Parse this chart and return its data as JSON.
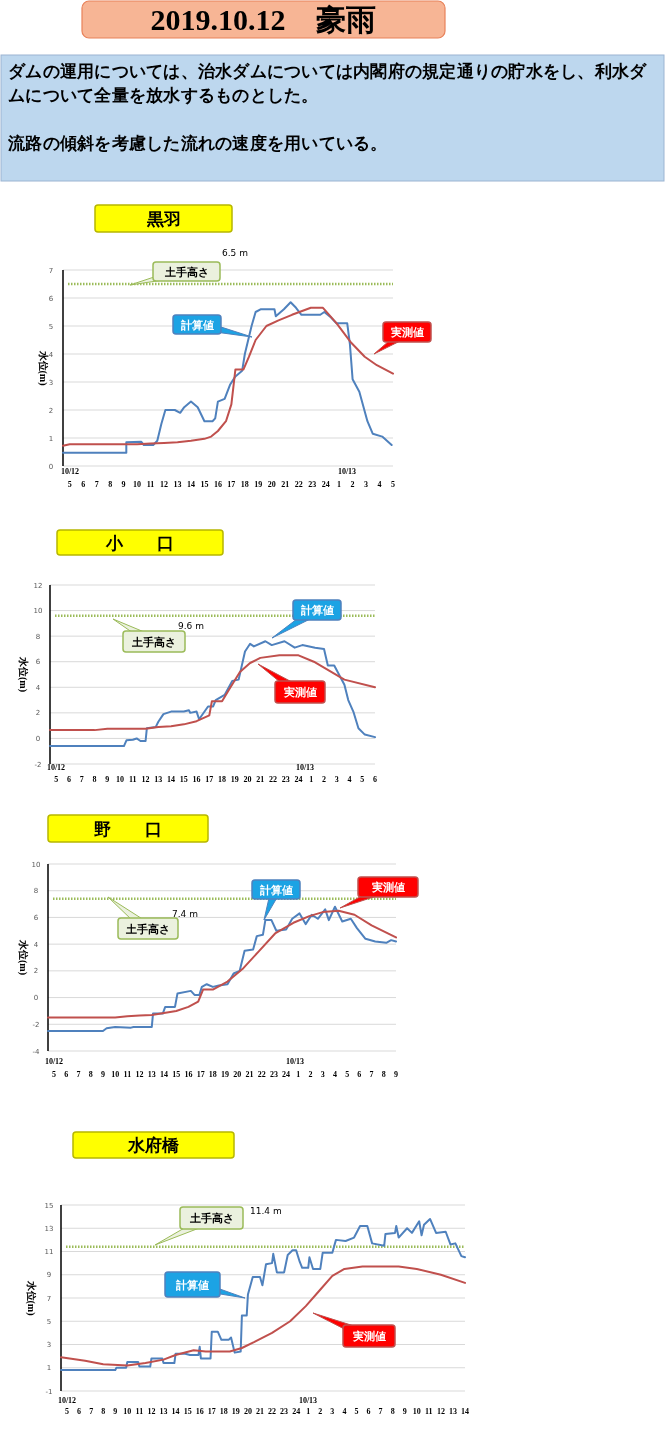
{
  "chart_data": [
    {
      "type": "other",
      "title": "2019.10.12　豪雨",
      "annotations": [
        "ダムの運用については、治水ダムについては内閣府の規定通りの貯水をし、利水ダムについて全量を放水するものとした。",
        "流路の傾斜を考慮した流れの速度を用いている。"
      ]
    },
    {
      "type": "line",
      "title": "黒羽",
      "ylabel": "水位(m)",
      "grid": "y",
      "xlim": [
        "2019-10-12T04:30",
        "2019-10-13T05:00"
      ],
      "ylim": [
        0,
        7
      ],
      "yticks": [
        0,
        1,
        2,
        3,
        4,
        5,
        6,
        7
      ],
      "xticks": [
        {
          "value": "2019-10-12T05:00",
          "label": "5"
        },
        {
          "value": "2019-10-12T06:00",
          "label": "6"
        },
        {
          "value": "2019-10-12T07:00",
          "label": "7"
        },
        {
          "value": "2019-10-12T08:00",
          "label": "8"
        },
        {
          "value": "2019-10-12T09:00",
          "label": "9"
        },
        {
          "value": "2019-10-12T10:00",
          "label": "10"
        },
        {
          "value": "2019-10-12T11:00",
          "label": "11"
        },
        {
          "value": "2019-10-12T12:00",
          "label": "12"
        },
        {
          "value": "2019-10-12T13:00",
          "label": "13"
        },
        {
          "value": "2019-10-12T14:00",
          "label": "14"
        },
        {
          "value": "2019-10-12T15:00",
          "label": "15"
        },
        {
          "value": "2019-10-12T16:00",
          "label": "16"
        },
        {
          "value": "2019-10-12T17:00",
          "label": "17"
        },
        {
          "value": "2019-10-12T18:00",
          "label": "18"
        },
        {
          "value": "2019-10-12T19:00",
          "label": "19"
        },
        {
          "value": "2019-10-12T20:00",
          "label": "20"
        },
        {
          "value": "2019-10-12T21:00",
          "label": "21"
        },
        {
          "value": "2019-10-12T22:00",
          "label": "22"
        },
        {
          "value": "2019-10-12T23:00",
          "label": "23"
        },
        {
          "value": "2019-10-13T00:00",
          "label": "24"
        },
        {
          "value": "2019-10-13T01:00",
          "label": "1"
        },
        {
          "value": "2019-10-13T02:00",
          "label": "2"
        },
        {
          "value": "2019-10-13T03:00",
          "label": "3"
        },
        {
          "value": "2019-10-13T04:00",
          "label": "4"
        },
        {
          "value": "2019-10-13T05:00",
          "label": "5"
        }
      ],
      "ref_lines": [
        {
          "axis": "y",
          "value": 6.5,
          "label": "土手高さ",
          "color": "#9bbb59",
          "line_style": "dotted"
        }
      ],
      "annotations": [
        "6.5 m",
        "10/12",
        "10/13"
      ],
      "series": [
        {
          "name": "計算値",
          "color": "#4f81bd",
          "x": [
            "2019-10-12T04:30",
            "2019-10-12T09:12",
            "2019-10-12T09:12",
            "2019-10-12T10:18",
            "2019-10-12T10:30",
            "2019-10-12T11:12",
            "2019-10-12T11:30",
            "2019-10-12T11:48",
            "2019-10-12T12:06",
            "2019-10-12T12:48",
            "2019-10-12T13:12",
            "2019-10-12T13:30",
            "2019-10-12T14:00",
            "2019-10-12T14:30",
            "2019-10-12T15:00",
            "2019-10-12T15:36",
            "2019-10-12T15:48",
            "2019-10-12T16:00",
            "2019-10-12T16:30",
            "2019-10-12T16:54",
            "2019-10-12T17:18",
            "2019-10-12T17:48",
            "2019-10-12T18:00",
            "2019-10-12T18:30",
            "2019-10-12T18:48",
            "2019-10-12T19:12",
            "2019-10-12T20:12",
            "2019-10-12T20:18",
            "2019-10-12T20:54",
            "2019-10-12T21:24",
            "2019-10-12T21:48",
            "2019-10-12T22:12",
            "2019-10-12T23:36",
            "2019-10-12T23:54",
            "2019-10-13T00:24",
            "2019-10-13T00:48",
            "2019-10-13T01:36",
            "2019-10-13T01:48",
            "2019-10-13T02:00",
            "2019-10-13T02:30",
            "2019-10-13T03:06",
            "2019-10-13T03:30",
            "2019-10-13T04:12",
            "2019-10-13T04:54"
          ],
          "values": [
            0.47,
            0.47,
            0.85,
            0.87,
            0.75,
            0.75,
            0.9,
            1.5,
            2.0,
            2.0,
            1.9,
            2.1,
            2.3,
            2.1,
            1.6,
            1.6,
            1.7,
            2.3,
            2.4,
            2.9,
            3.2,
            3.4,
            4.0,
            5.0,
            5.5,
            5.6,
            5.6,
            5.35,
            5.6,
            5.85,
            5.65,
            5.4,
            5.4,
            5.5,
            5.3,
            5.1,
            5.1,
            4.35,
            3.1,
            2.65,
            1.6,
            1.15,
            1.05,
            0.75
          ]
        },
        {
          "name": "実測値",
          "color": "#c0504d",
          "x": [
            "2019-10-12T04:30",
            "2019-10-12T05:00",
            "2019-10-12T10:00",
            "2019-10-12T11:00",
            "2019-10-12T12:00",
            "2019-10-12T13:00",
            "2019-10-12T14:00",
            "2019-10-12T15:00",
            "2019-10-12T15:30",
            "2019-10-12T16:00",
            "2019-10-12T16:36",
            "2019-10-12T17:00",
            "2019-10-12T17:18",
            "2019-10-12T17:54",
            "2019-10-12T18:18",
            "2019-10-12T18:48",
            "2019-10-12T19:36",
            "2019-10-12T20:30",
            "2019-10-12T21:30",
            "2019-10-12T22:54",
            "2019-10-12T23:48",
            "2019-10-13T00:48",
            "2019-10-13T01:54",
            "2019-10-13T02:54",
            "2019-10-13T03:48",
            "2019-10-13T05:00"
          ],
          "values": [
            0.72,
            0.78,
            0.78,
            0.8,
            0.82,
            0.85,
            0.9,
            0.97,
            1.05,
            1.25,
            1.6,
            2.2,
            3.45,
            3.45,
            3.9,
            4.5,
            5.0,
            5.2,
            5.4,
            5.65,
            5.65,
            5.1,
            4.4,
            3.9,
            3.6,
            3.3
          ]
        }
      ]
    },
    {
      "type": "line",
      "title": "小　　口",
      "ylabel": "水位(m)",
      "grid": "y",
      "xlim": [
        "2019-10-12T04:30",
        "2019-10-13T06:00"
      ],
      "ylim": [
        -2,
        12
      ],
      "yticks": [
        -2,
        0,
        2,
        4,
        6,
        8,
        10,
        12
      ],
      "xticks": [
        {
          "value": "2019-10-12T05:00",
          "label": "5"
        },
        {
          "value": "2019-10-12T06:00",
          "label": "6"
        },
        {
          "value": "2019-10-12T07:00",
          "label": "7"
        },
        {
          "value": "2019-10-12T08:00",
          "label": "8"
        },
        {
          "value": "2019-10-12T09:00",
          "label": "9"
        },
        {
          "value": "2019-10-12T10:00",
          "label": "10"
        },
        {
          "value": "2019-10-12T11:00",
          "label": "11"
        },
        {
          "value": "2019-10-12T12:00",
          "label": "12"
        },
        {
          "value": "2019-10-12T13:00",
          "label": "13"
        },
        {
          "value": "2019-10-12T14:00",
          "label": "14"
        },
        {
          "value": "2019-10-12T15:00",
          "label": "15"
        },
        {
          "value": "2019-10-12T16:00",
          "label": "16"
        },
        {
          "value": "2019-10-12T17:00",
          "label": "17"
        },
        {
          "value": "2019-10-12T18:00",
          "label": "18"
        },
        {
          "value": "2019-10-12T19:00",
          "label": "19"
        },
        {
          "value": "2019-10-12T20:00",
          "label": "20"
        },
        {
          "value": "2019-10-12T21:00",
          "label": "21"
        },
        {
          "value": "2019-10-12T22:00",
          "label": "22"
        },
        {
          "value": "2019-10-12T23:00",
          "label": "23"
        },
        {
          "value": "2019-10-13T00:00",
          "label": "24"
        },
        {
          "value": "2019-10-13T01:00",
          "label": "1"
        },
        {
          "value": "2019-10-13T02:00",
          "label": "2"
        },
        {
          "value": "2019-10-13T03:00",
          "label": "3"
        },
        {
          "value": "2019-10-13T04:00",
          "label": "4"
        },
        {
          "value": "2019-10-13T05:00",
          "label": "5"
        },
        {
          "value": "2019-10-13T06:00",
          "label": "6"
        }
      ],
      "ref_lines": [
        {
          "axis": "y",
          "value": 9.6,
          "label": "土手高さ",
          "color": "#9bbb59",
          "line_style": "dotted"
        }
      ],
      "annotations": [
        "9.6 m",
        "10/12",
        "10/13"
      ],
      "series": [
        {
          "name": "計算値",
          "color": "#4f81bd",
          "x": [
            "2019-10-12T04:30",
            "2019-10-12T10:18",
            "2019-10-12T10:30",
            "2019-10-12T11:00",
            "2019-10-12T11:18",
            "2019-10-12T11:36",
            "2019-10-12T12:00",
            "2019-10-12T12:06",
            "2019-10-12T12:48",
            "2019-10-12T13:00",
            "2019-10-12T13:24",
            "2019-10-12T14:00",
            "2019-10-12T15:00",
            "2019-10-12T15:24",
            "2019-10-12T15:30",
            "2019-10-12T16:00",
            "2019-10-12T16:12",
            "2019-10-12T16:54",
            "2019-10-12T17:18",
            "2019-10-12T17:30",
            "2019-10-12T18:12",
            "2019-10-12T18:48",
            "2019-10-12T19:18",
            "2019-10-12T19:48",
            "2019-10-12T20:12",
            "2019-10-12T20:30",
            "2019-10-12T21:24",
            "2019-10-12T21:54",
            "2019-10-12T22:54",
            "2019-10-12T23:42",
            "2019-10-13T00:18",
            "2019-10-13T01:18",
            "2019-10-13T02:00",
            "2019-10-13T02:18",
            "2019-10-13T02:48",
            "2019-10-13T03:36",
            "2019-10-13T03:54",
            "2019-10-13T04:18",
            "2019-10-13T04:42",
            "2019-10-13T05:12",
            "2019-10-13T06:00"
          ],
          "values": [
            -0.6,
            -0.6,
            -0.15,
            -0.1,
            0.0,
            -0.2,
            -0.2,
            0.8,
            0.9,
            1.3,
            1.9,
            2.1,
            2.1,
            2.2,
            2.0,
            2.1,
            1.5,
            2.5,
            2.5,
            3.0,
            3.4,
            4.5,
            4.6,
            6.8,
            7.4,
            7.2,
            7.6,
            7.3,
            7.6,
            7.1,
            7.3,
            7.1,
            7.0,
            5.7,
            5.7,
            4.2,
            3.0,
            2.1,
            0.8,
            0.3,
            0.1
          ]
        },
        {
          "name": "実測値",
          "color": "#c0504d",
          "x": [
            "2019-10-12T04:30",
            "2019-10-12T08:00",
            "2019-10-12T09:00",
            "2019-10-12T12:00",
            "2019-10-12T13:00",
            "2019-10-12T14:00",
            "2019-10-12T15:00",
            "2019-10-12T16:00",
            "2019-10-12T17:00",
            "2019-10-12T17:12",
            "2019-10-12T18:00",
            "2019-10-12T18:36",
            "2019-10-12T19:24",
            "2019-10-12T20:12",
            "2019-10-12T21:00",
            "2019-10-12T22:30",
            "2019-10-13T00:00",
            "2019-10-13T01:12",
            "2019-10-13T02:24",
            "2019-10-13T03:36",
            "2019-10-13T06:00"
          ],
          "values": [
            0.65,
            0.65,
            0.75,
            0.75,
            0.9,
            0.95,
            1.1,
            1.35,
            1.8,
            2.9,
            2.9,
            3.9,
            5.2,
            5.9,
            6.3,
            6.5,
            6.5,
            6.0,
            5.3,
            4.6,
            4.0
          ]
        }
      ]
    },
    {
      "type": "line",
      "title": "野　　口",
      "ylabel": "水位(m)",
      "grid": "y",
      "xlim": [
        "2019-10-12T04:30",
        "2019-10-13T09:00"
      ],
      "ylim": [
        -4,
        10
      ],
      "yticks": [
        -4,
        -2,
        0,
        2,
        4,
        6,
        8,
        10
      ],
      "xticks": [
        {
          "value": "2019-10-12T05:00",
          "label": "5"
        },
        {
          "value": "2019-10-12T06:00",
          "label": "6"
        },
        {
          "value": "2019-10-12T07:00",
          "label": "7"
        },
        {
          "value": "2019-10-12T08:00",
          "label": "8"
        },
        {
          "value": "2019-10-12T09:00",
          "label": "9"
        },
        {
          "value": "2019-10-12T10:00",
          "label": "10"
        },
        {
          "value": "2019-10-12T11:00",
          "label": "11"
        },
        {
          "value": "2019-10-12T12:00",
          "label": "12"
        },
        {
          "value": "2019-10-12T13:00",
          "label": "13"
        },
        {
          "value": "2019-10-12T14:00",
          "label": "14"
        },
        {
          "value": "2019-10-12T15:00",
          "label": "15"
        },
        {
          "value": "2019-10-12T16:00",
          "label": "16"
        },
        {
          "value": "2019-10-12T17:00",
          "label": "17"
        },
        {
          "value": "2019-10-12T18:00",
          "label": "18"
        },
        {
          "value": "2019-10-12T19:00",
          "label": "19"
        },
        {
          "value": "2019-10-12T20:00",
          "label": "20"
        },
        {
          "value": "2019-10-12T21:00",
          "label": "21"
        },
        {
          "value": "2019-10-12T22:00",
          "label": "22"
        },
        {
          "value": "2019-10-12T23:00",
          "label": "23"
        },
        {
          "value": "2019-10-13T00:00",
          "label": "24"
        },
        {
          "value": "2019-10-13T01:00",
          "label": "1"
        },
        {
          "value": "2019-10-13T02:00",
          "label": "2"
        },
        {
          "value": "2019-10-13T03:00",
          "label": "3"
        },
        {
          "value": "2019-10-13T04:00",
          "label": "4"
        },
        {
          "value": "2019-10-13T05:00",
          "label": "5"
        },
        {
          "value": "2019-10-13T06:00",
          "label": "6"
        },
        {
          "value": "2019-10-13T07:00",
          "label": "7"
        },
        {
          "value": "2019-10-13T08:00",
          "label": "8"
        },
        {
          "value": "2019-10-13T09:00",
          "label": "9"
        }
      ],
      "ref_lines": [
        {
          "axis": "y",
          "value": 7.4,
          "label": "土手高さ",
          "color": "#9bbb59",
          "line_style": "dotted"
        }
      ],
      "annotations": [
        "7.4 m",
        "10/12",
        "10/13"
      ],
      "series": [
        {
          "name": "計算値",
          "color": "#4f81bd",
          "x": [
            "2019-10-12T04:30",
            "2019-10-12T09:00",
            "2019-10-12T09:18",
            "2019-10-12T10:00",
            "2019-10-12T11:18",
            "2019-10-12T11:30",
            "2019-10-12T13:00",
            "2019-10-12T13:06",
            "2019-10-12T13:54",
            "2019-10-12T14:06",
            "2019-10-12T14:54",
            "2019-10-12T15:06",
            "2019-10-12T16:12",
            "2019-10-12T16:30",
            "2019-10-12T16:54",
            "2019-10-12T17:06",
            "2019-10-12T17:30",
            "2019-10-12T18:00",
            "2019-10-12T18:30",
            "2019-10-12T19:12",
            "2019-10-12T19:42",
            "2019-10-12T20:12",
            "2019-10-12T20:36",
            "2019-10-12T21:18",
            "2019-10-12T21:36",
            "2019-10-12T22:06",
            "2019-10-12T22:18",
            "2019-10-12T22:48",
            "2019-10-12T23:12",
            "2019-10-13T00:00",
            "2019-10-13T00:30",
            "2019-10-13T01:06",
            "2019-10-13T01:36",
            "2019-10-13T02:06",
            "2019-10-13T02:36",
            "2019-10-13T03:12",
            "2019-10-13T03:30",
            "2019-10-13T04:00",
            "2019-10-13T04:36",
            "2019-10-13T05:18",
            "2019-10-13T05:48",
            "2019-10-13T06:30",
            "2019-10-13T07:18",
            "2019-10-13T08:12",
            "2019-10-13T08:36",
            "2019-10-13T09:00"
          ],
          "values": [
            -2.5,
            -2.5,
            -2.3,
            -2.2,
            -2.25,
            -2.2,
            -2.2,
            -1.2,
            -1.2,
            -0.7,
            -0.7,
            0.3,
            0.5,
            0.2,
            0.2,
            0.8,
            1.0,
            0.8,
            0.9,
            1.0,
            1.8,
            2.0,
            3.5,
            3.6,
            4.6,
            4.7,
            5.8,
            5.8,
            5.0,
            5.1,
            5.9,
            6.3,
            5.5,
            6.2,
            5.9,
            6.6,
            5.8,
            6.8,
            5.7,
            5.9,
            5.2,
            4.4,
            4.2,
            4.1,
            4.3,
            4.2
          ]
        },
        {
          "name": "実測値",
          "color": "#c0504d",
          "x": [
            "2019-10-12T04:30",
            "2019-10-12T10:00",
            "2019-10-12T11:00",
            "2019-10-12T12:00",
            "2019-10-12T13:00",
            "2019-10-12T14:00",
            "2019-10-12T15:00",
            "2019-10-12T16:00",
            "2019-10-12T16:48",
            "2019-10-12T17:12",
            "2019-10-12T18:00",
            "2019-10-12T19:12",
            "2019-10-12T20:30",
            "2019-10-12T21:48",
            "2019-10-12T23:06",
            "2019-10-13T00:36",
            "2019-10-13T01:54",
            "2019-10-13T03:00",
            "2019-10-13T04:18",
            "2019-10-13T05:36",
            "2019-10-13T07:00",
            "2019-10-13T09:00"
          ],
          "values": [
            -1.5,
            -1.5,
            -1.4,
            -1.35,
            -1.3,
            -1.15,
            -1.0,
            -0.7,
            -0.3,
            0.6,
            0.6,
            1.2,
            2.2,
            3.5,
            4.8,
            5.6,
            6.1,
            6.4,
            6.5,
            6.2,
            5.4,
            4.5
          ]
        }
      ]
    },
    {
      "type": "line",
      "title": "水府橋",
      "ylabel": "水位(m)",
      "grid": "y",
      "xlim": [
        "2019-10-12T04:30",
        "2019-10-13T14:00"
      ],
      "ylim": [
        -1,
        15
      ],
      "yticks": [
        -1,
        1,
        3,
        5,
        7,
        9,
        11,
        13,
        15
      ],
      "xticks": [
        {
          "value": "2019-10-12T05:00",
          "label": "5"
        },
        {
          "value": "2019-10-12T06:00",
          "label": "6"
        },
        {
          "value": "2019-10-12T07:00",
          "label": "7"
        },
        {
          "value": "2019-10-12T08:00",
          "label": "8"
        },
        {
          "value": "2019-10-12T09:00",
          "label": "9"
        },
        {
          "value": "2019-10-12T10:00",
          "label": "10"
        },
        {
          "value": "2019-10-12T11:00",
          "label": "11"
        },
        {
          "value": "2019-10-12T12:00",
          "label": "12"
        },
        {
          "value": "2019-10-12T13:00",
          "label": "13"
        },
        {
          "value": "2019-10-12T14:00",
          "label": "14"
        },
        {
          "value": "2019-10-12T15:00",
          "label": "15"
        },
        {
          "value": "2019-10-12T16:00",
          "label": "16"
        },
        {
          "value": "2019-10-12T17:00",
          "label": "17"
        },
        {
          "value": "2019-10-12T18:00",
          "label": "18"
        },
        {
          "value": "2019-10-12T19:00",
          "label": "19"
        },
        {
          "value": "2019-10-12T20:00",
          "label": "20"
        },
        {
          "value": "2019-10-12T21:00",
          "label": "21"
        },
        {
          "value": "2019-10-12T22:00",
          "label": "22"
        },
        {
          "value": "2019-10-12T23:00",
          "label": "23"
        },
        {
          "value": "2019-10-13T00:00",
          "label": "24"
        },
        {
          "value": "2019-10-13T01:00",
          "label": "1"
        },
        {
          "value": "2019-10-13T02:00",
          "label": "2"
        },
        {
          "value": "2019-10-13T03:00",
          "label": "3"
        },
        {
          "value": "2019-10-13T04:00",
          "label": "4"
        },
        {
          "value": "2019-10-13T05:00",
          "label": "5"
        },
        {
          "value": "2019-10-13T06:00",
          "label": "6"
        },
        {
          "value": "2019-10-13T07:00",
          "label": "7"
        },
        {
          "value": "2019-10-13T08:00",
          "label": "8"
        },
        {
          "value": "2019-10-13T09:00",
          "label": "9"
        },
        {
          "value": "2019-10-13T10:00",
          "label": "10"
        },
        {
          "value": "2019-10-13T11:00",
          "label": "11"
        },
        {
          "value": "2019-10-13T12:00",
          "label": "12"
        },
        {
          "value": "2019-10-13T13:00",
          "label": "13"
        },
        {
          "value": "2019-10-13T14:00",
          "label": "14"
        }
      ],
      "ref_lines": [
        {
          "axis": "y",
          "value": 11.4,
          "label": "土手高さ",
          "color": "#9bbb59",
          "line_style": "dotted"
        }
      ],
      "annotations": [
        "11.4 m",
        "10/12",
        "10/13"
      ],
      "series": [
        {
          "name": "計算値",
          "color": "#4f81bd",
          "x": [
            "2019-10-12T04:30",
            "2019-10-12T09:00",
            "2019-10-12T09:06",
            "2019-10-12T09:54",
            "2019-10-12T10:00",
            "2019-10-12T10:54",
            "2019-10-12T11:00",
            "2019-10-12T11:54",
            "2019-10-12T12:00",
            "2019-10-12T12:54",
            "2019-10-12T13:00",
            "2019-10-12T13:54",
            "2019-10-12T14:00",
            "2019-10-12T14:48",
            "2019-10-12T15:12",
            "2019-10-12T15:54",
            "2019-10-12T16:00",
            "2019-10-12T16:06",
            "2019-10-12T16:54",
            "2019-10-12T17:00",
            "2019-10-12T17:30",
            "2019-10-12T17:48",
            "2019-10-12T18:24",
            "2019-10-12T18:36",
            "2019-10-12T18:54",
            "2019-10-12T19:24",
            "2019-10-12T19:30",
            "2019-10-12T19:54",
            "2019-10-12T20:00",
            "2019-10-12T20:24",
            "2019-10-12T21:00",
            "2019-10-12T21:12",
            "2019-10-12T21:30",
            "2019-10-12T22:00",
            "2019-10-12T22:06",
            "2019-10-12T22:24",
            "2019-10-12T23:00",
            "2019-10-12T23:18",
            "2019-10-12T23:42",
            "2019-10-13T00:00",
            "2019-10-13T00:18",
            "2019-10-13T00:30",
            "2019-10-13T01:00",
            "2019-10-13T01:06",
            "2019-10-13T01:24",
            "2019-10-13T02:00",
            "2019-10-13T02:12",
            "2019-10-13T03:00",
            "2019-10-13T03:18",
            "2019-10-13T04:06",
            "2019-10-13T04:48",
            "2019-10-13T05:18",
            "2019-10-13T05:54",
            "2019-10-13T06:18",
            "2019-10-13T07:18",
            "2019-10-13T07:24",
            "2019-10-13T08:12",
            "2019-10-13T08:18",
            "2019-10-13T08:30",
            "2019-10-13T09:12",
            "2019-10-13T09:36",
            "2019-10-13T10:12",
            "2019-10-13T10:24",
            "2019-10-13T10:36",
            "2019-10-13T11:06",
            "2019-10-13T11:36",
            "2019-10-13T12:24",
            "2019-10-13T12:48",
            "2019-10-13T13:12",
            "2019-10-13T13:42",
            "2019-10-13T14:00"
          ],
          "values": [
            0.8,
            0.8,
            1.0,
            1.0,
            1.5,
            1.5,
            1.1,
            1.1,
            1.8,
            1.8,
            1.4,
            1.4,
            2.2,
            2.2,
            2.1,
            2.1,
            2.8,
            1.8,
            1.8,
            4.1,
            4.1,
            3.4,
            3.4,
            3.6,
            2.3,
            2.4,
            5.5,
            5.5,
            7.3,
            8.8,
            8.8,
            8.1,
            9.9,
            10.0,
            10.8,
            9.2,
            9.2,
            10.7,
            11.1,
            11.1,
            10.1,
            9.6,
            9.6,
            10.5,
            9.5,
            9.5,
            10.9,
            10.9,
            12.0,
            11.9,
            12.2,
            13.2,
            13.2,
            11.7,
            11.5,
            12.5,
            12.6,
            13.2,
            12.2,
            13.0,
            12.6,
            13.6,
            12.4,
            13.3,
            13.8,
            12.6,
            12.7,
            11.6,
            11.7,
            10.6,
            10.5
          ]
        },
        {
          "name": "実測値",
          "color": "#c0504d",
          "x": [
            "2019-10-12T04:30",
            "2019-10-12T06:30",
            "2019-10-12T08:00",
            "2019-10-12T10:00",
            "2019-10-12T11:30",
            "2019-10-12T13:00",
            "2019-10-12T14:00",
            "2019-10-12T15:30",
            "2019-10-12T16:30",
            "2019-10-12T18:30",
            "2019-10-12T19:30",
            "2019-10-12T20:30",
            "2019-10-12T22:00",
            "2019-10-12T23:30",
            "2019-10-13T00:48",
            "2019-10-13T01:54",
            "2019-10-13T03:00",
            "2019-10-13T04:00",
            "2019-10-13T05:30",
            "2019-10-13T08:30",
            "2019-10-13T10:00",
            "2019-10-13T12:00",
            "2019-10-13T14:00"
          ],
          "values": [
            1.9,
            1.6,
            1.3,
            1.2,
            1.4,
            1.7,
            2.1,
            2.5,
            2.4,
            2.4,
            2.7,
            3.2,
            4.0,
            5.0,
            6.3,
            7.6,
            8.9,
            9.5,
            9.7,
            9.7,
            9.5,
            9.0,
            8.3
          ]
        }
      ]
    }
  ]
}
